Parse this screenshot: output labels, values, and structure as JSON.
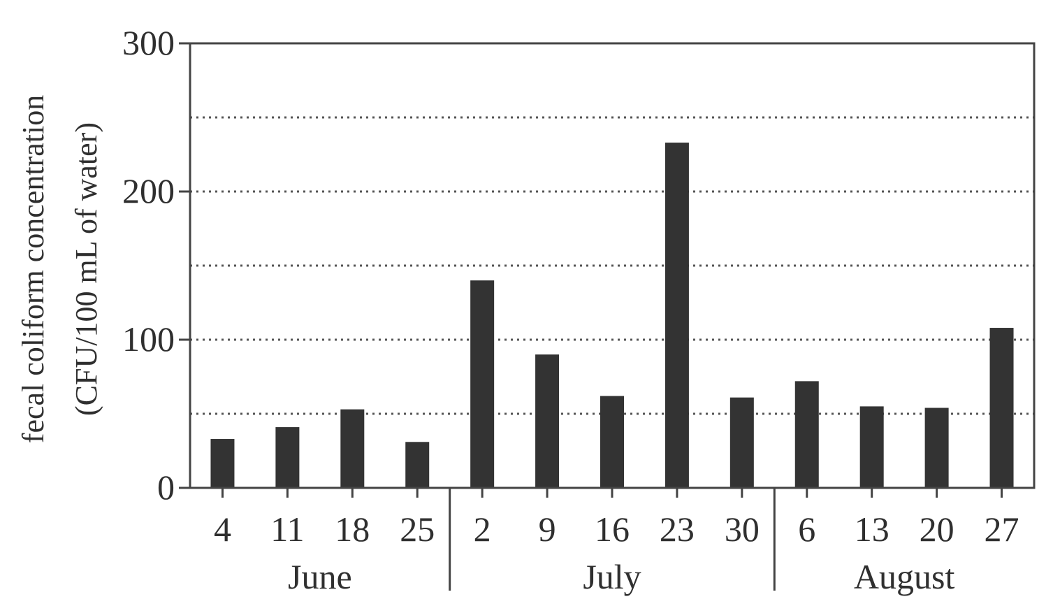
{
  "chart_data": {
    "type": "bar",
    "categories": [
      "4",
      "11",
      "18",
      "25",
      "2",
      "9",
      "16",
      "23",
      "30",
      "6",
      "13",
      "20",
      "27"
    ],
    "groups": [
      {
        "name": "June",
        "categories": [
          "4",
          "11",
          "18",
          "25"
        ]
      },
      {
        "name": "July",
        "categories": [
          "2",
          "9",
          "16",
          "23",
          "30"
        ]
      },
      {
        "name": "August",
        "categories": [
          "6",
          "13",
          "20",
          "27"
        ]
      }
    ],
    "values": [
      33,
      41,
      53,
      31,
      140,
      90,
      62,
      233,
      61,
      72,
      55,
      54,
      108
    ],
    "ylabel_line1": "fecal coliform concentration",
    "ylabel_line2": "(CFU/100 mL of water)",
    "ylim": [
      0,
      300
    ],
    "yticks": [
      0,
      100,
      200,
      300
    ],
    "grid": "dotted horizontal every 50",
    "bar_color": "#333333"
  }
}
